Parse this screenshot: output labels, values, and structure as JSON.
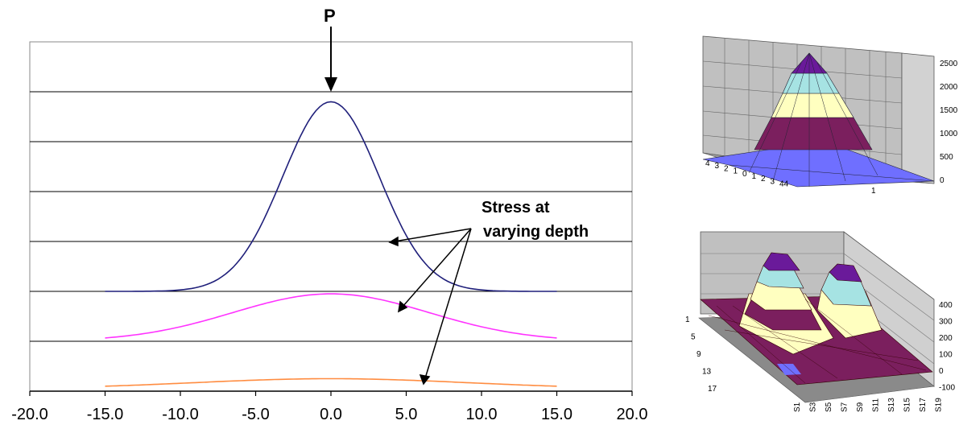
{
  "chart_data": [
    {
      "type": "line",
      "title": "",
      "xlabel": "",
      "ylabel": "",
      "xlim": [
        -20,
        20
      ],
      "x_ticks": [
        "-20.0",
        "-15.0",
        "-10.0",
        "-5.0",
        "0.0",
        "5.0",
        "10.0",
        "15.0",
        "20.0"
      ],
      "grid": "horizontal",
      "load_label": "P",
      "load_x": 0,
      "annotation": [
        "Stress at",
        "varying depth"
      ],
      "series": [
        {
          "color": "#1f1f7a",
          "baseline_band": 5,
          "peak_band": 1.2,
          "width": 3.2,
          "x": [
            -15,
            -14,
            -13,
            -12,
            -11,
            -10,
            -9,
            -8,
            -7,
            -6,
            -5,
            -4,
            -3,
            -2,
            -1,
            0,
            1,
            2,
            3,
            4,
            5,
            6,
            7,
            8,
            9,
            10,
            11,
            12,
            13,
            14,
            15
          ]
        },
        {
          "color": "#ff33ff",
          "baseline_band": 6,
          "peak_band": 5.05,
          "width": 6.5,
          "x": [
            -15,
            -14,
            -13,
            -12,
            -11,
            -10,
            -9,
            -8,
            -7,
            -6,
            -5,
            -4,
            -3,
            -2,
            -1,
            0,
            1,
            2,
            3,
            4,
            5,
            6,
            7,
            8,
            9,
            10,
            11,
            12,
            13,
            14,
            15
          ]
        },
        {
          "color": "#ff8c40",
          "baseline_band": 6.95,
          "peak_band": 6.75,
          "width": 9,
          "x": [
            -15,
            -14,
            -13,
            -12,
            -11,
            -10,
            -9,
            -8,
            -7,
            -6,
            -5,
            -4,
            -3,
            -2,
            -1,
            0,
            1,
            2,
            3,
            4,
            5,
            6,
            7,
            8,
            9,
            10,
            11,
            12,
            13,
            14,
            15
          ]
        }
      ]
    },
    {
      "type": "surface",
      "title": "",
      "z_ticks": [
        "2500",
        "2000",
        "1500",
        "1000",
        "500",
        "0"
      ],
      "x_ticks": [
        "4",
        "3",
        "2",
        "1",
        "0",
        "1",
        "2",
        "3",
        "44"
      ],
      "y_ticks": [
        "1"
      ],
      "colors": [
        "#6666ff",
        "#7b1f5e",
        "#ffffc0",
        "#a6e3e3",
        "#6a1a9a"
      ]
    },
    {
      "type": "surface",
      "title": "",
      "z_ticks": [
        "400",
        "300",
        "200",
        "100",
        "0",
        "-100"
      ],
      "y_ticks": [
        "1",
        "5",
        "9",
        "13",
        "17"
      ],
      "x_ticks": [
        "S1",
        "S3",
        "S5",
        "S7",
        "S9",
        "S11",
        "S13",
        "S15",
        "S17",
        "S19"
      ],
      "colors": [
        "#7b1f5e",
        "#ffffc0",
        "#a6e3e3",
        "#6a1a9a"
      ]
    }
  ]
}
